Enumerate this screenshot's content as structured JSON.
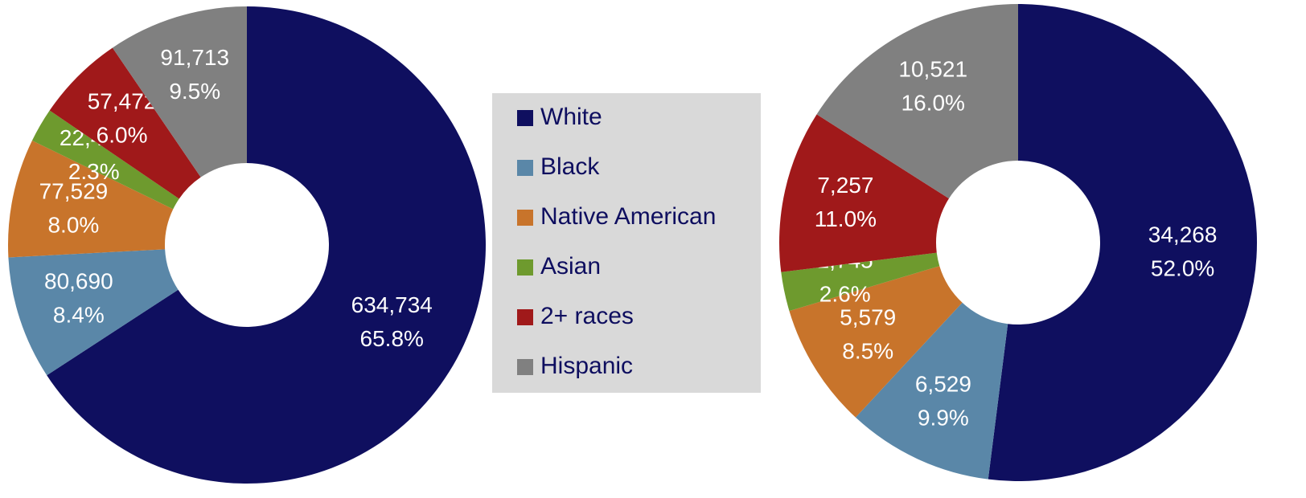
{
  "legend": {
    "labels": [
      "White",
      "Black",
      "Native American",
      "Asian",
      "2+ races",
      "Hispanic"
    ],
    "colors": [
      "#0f0f5f",
      "#5a87a8",
      "#c8742b",
      "#6e9a2e",
      "#a0191a",
      "#808080"
    ]
  },
  "chart_data": [
    {
      "type": "pie",
      "values": [
        634734,
        80690,
        77529,
        22431,
        57472,
        91713
      ],
      "value_labels": [
        "634,734",
        "80,690",
        "77,529",
        "22,431",
        "57,472",
        "91,713"
      ],
      "percentages": [
        65.8,
        8.4,
        8.0,
        2.3,
        6.0,
        9.5
      ],
      "percentage_labels": [
        "65.8%",
        "8.4%",
        "8.0%",
        "2.3%",
        "6.0%",
        "9.5%"
      ]
    },
    {
      "type": "pie",
      "values": [
        34268,
        6529,
        5579,
        1745,
        7257,
        10521
      ],
      "value_labels": [
        "34,268",
        "6,529",
        "5,579",
        "1,745",
        "7,257",
        "10,521"
      ],
      "percentages": [
        52.0,
        9.9,
        8.5,
        2.6,
        11.0,
        16.0
      ],
      "percentage_labels": [
        "52.0%",
        "9.9%",
        "8.5%",
        "2.6%",
        "11.0%",
        "16.0%"
      ]
    }
  ]
}
